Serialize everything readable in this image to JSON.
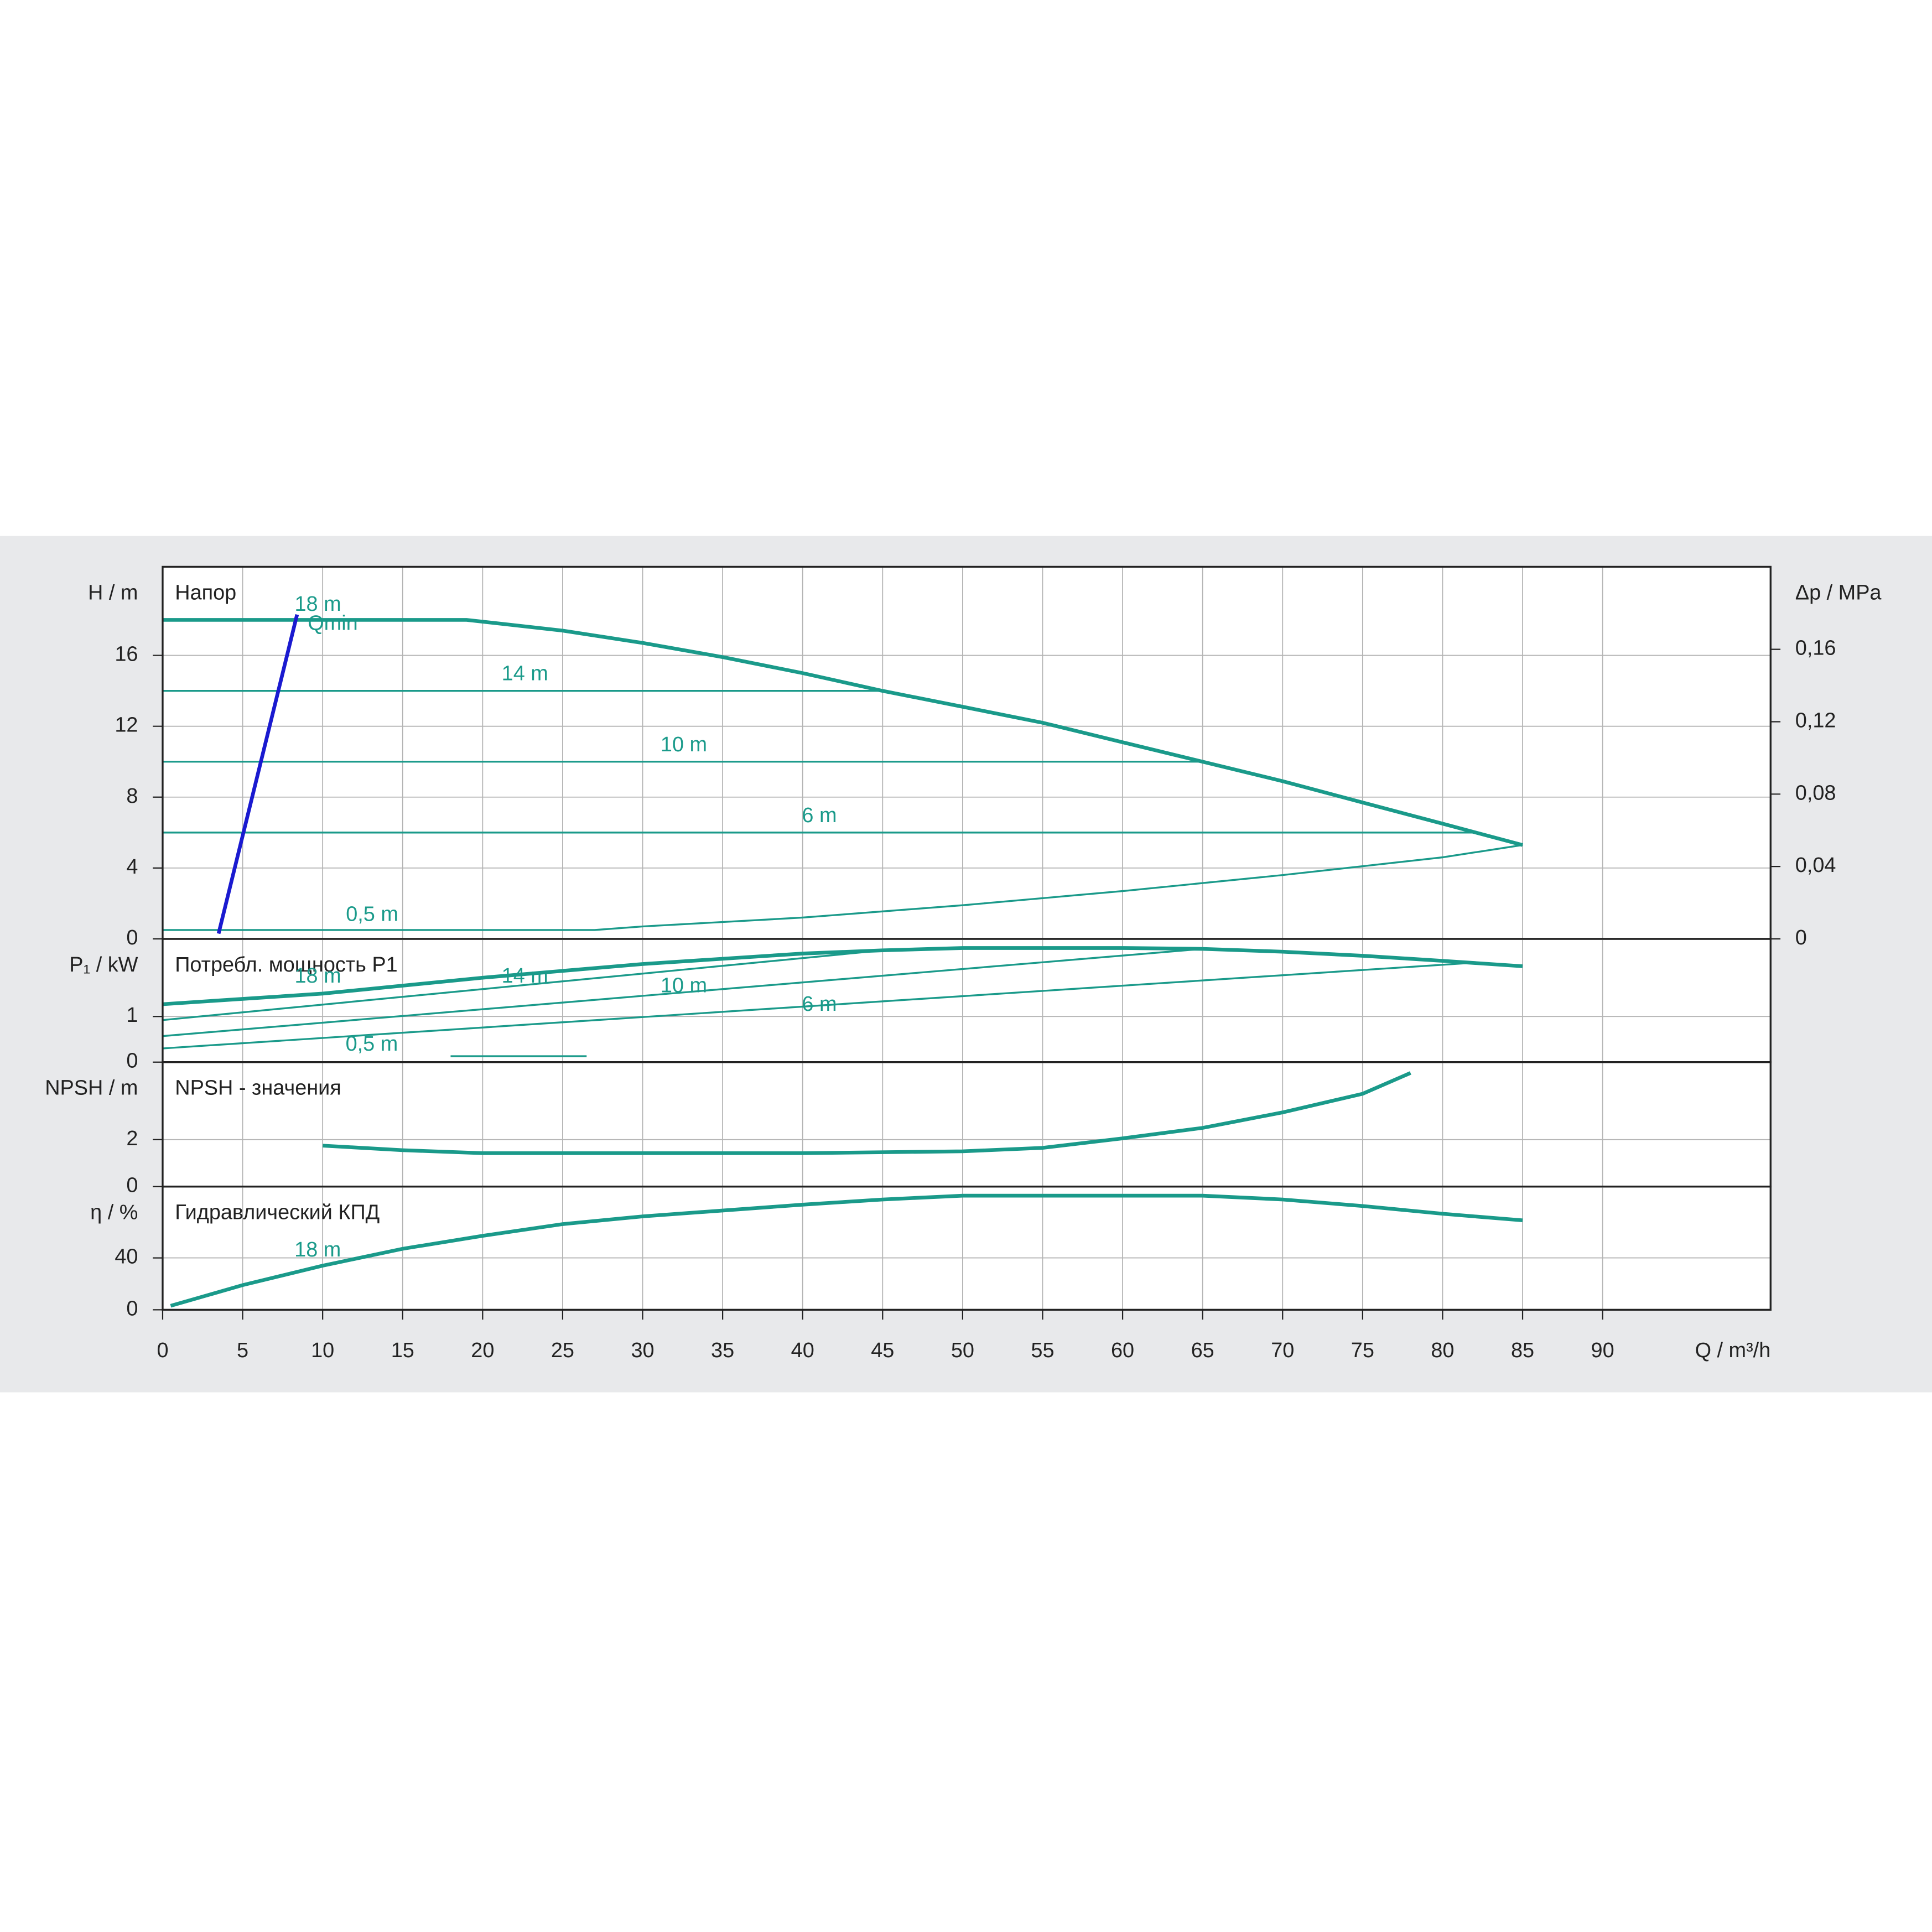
{
  "chart_data": [
    {
      "type": "line",
      "title": "Напор",
      "y_label": "H / m",
      "y2_label": "Δp / MPa",
      "ylim": [
        0,
        21
      ],
      "yticks": [
        0,
        4,
        8,
        12,
        16
      ],
      "y2lim": [
        0,
        0.2056
      ],
      "y2ticks": [
        0,
        {
          "value": 0.04,
          "label": "0,04"
        },
        {
          "value": 0.08,
          "label": "0,08"
        },
        {
          "value": 0.12,
          "label": "0,12"
        },
        {
          "value": 0.16,
          "label": "0,16"
        }
      ],
      "grid": true,
      "series": [
        {
          "name": "18 m",
          "color": "#1a9a8a",
          "x": [
            0,
            19,
            25,
            30,
            35,
            40,
            45,
            50,
            55,
            60,
            65,
            70,
            75,
            80,
            85
          ],
          "values": [
            18,
            18,
            17.4,
            16.7,
            15.9,
            15,
            14,
            13.1,
            12.2,
            11.1,
            10,
            8.9,
            7.7,
            6.5,
            5.3
          ]
        },
        {
          "name": "14 m",
          "color": "#1a9a8a",
          "x": [
            0,
            45
          ],
          "values": [
            14,
            14
          ]
        },
        {
          "name": "10 m",
          "color": "#1a9a8a",
          "x": [
            0,
            65
          ],
          "values": [
            10,
            10
          ]
        },
        {
          "name": "6 m",
          "color": "#1a9a8a",
          "x": [
            0,
            82
          ],
          "values": [
            6,
            6
          ]
        },
        {
          "name": "0,5 m",
          "color": "#1a9a8a",
          "x": [
            0,
            27,
            30,
            40,
            50,
            60,
            70,
            80,
            85
          ],
          "values": [
            0.5,
            0.5,
            0.7,
            1.2,
            1.9,
            2.7,
            3.6,
            4.6,
            5.3
          ]
        },
        {
          "name": "Qmin",
          "color": "#1a1ad0",
          "x": [
            3.5,
            8.4
          ],
          "values": [
            0.3,
            18.3
          ]
        }
      ]
    },
    {
      "type": "line",
      "title": "Потребл. мощность P1",
      "y_label": "P₁ / kW",
      "ylim": [
        0,
        2.7
      ],
      "yticks": [
        0,
        1
      ],
      "grid": true,
      "series": [
        {
          "name": "18 m",
          "color": "#1a9a8a",
          "x": [
            0,
            10,
            20,
            30,
            40,
            45,
            50,
            55,
            60,
            65,
            70,
            75,
            80,
            85
          ],
          "values": [
            1.27,
            1.5,
            1.85,
            2.15,
            2.38,
            2.45,
            2.5,
            2.5,
            2.5,
            2.48,
            2.42,
            2.33,
            2.22,
            2.1
          ]
        },
        {
          "name": "14 m",
          "color": "#1a9a8a",
          "x": [
            0,
            45
          ],
          "values": [
            0.92,
            2.45
          ]
        },
        {
          "name": "10 m",
          "color": "#1a9a8a",
          "x": [
            0,
            65
          ],
          "values": [
            0.57,
            2.48
          ]
        },
        {
          "name": "6 m",
          "color": "#1a9a8a",
          "x": [
            0,
            82
          ],
          "values": [
            0.3,
            2.18
          ]
        },
        {
          "name": "0,5 m",
          "color": "#1a9a8a",
          "x": [
            18,
            26.5
          ],
          "values": [
            0.13,
            0.13
          ]
        }
      ]
    },
    {
      "type": "line",
      "title": "NPSH - значения",
      "y_label": "NPSH / m",
      "ylim": [
        0,
        5.3
      ],
      "yticks": [
        0,
        2
      ],
      "grid": true,
      "series": [
        {
          "color": "#1a9a8a",
          "x": [
            10,
            15,
            20,
            30,
            40,
            50,
            55,
            60,
            65,
            70,
            75,
            78
          ],
          "values": [
            1.74,
            1.55,
            1.42,
            1.42,
            1.42,
            1.5,
            1.65,
            2.05,
            2.5,
            3.16,
            3.95,
            4.84
          ]
        }
      ]
    },
    {
      "type": "line",
      "title": "Гидравлический КПД",
      "y_label": "η / %",
      "ylim": [
        0,
        95
      ],
      "yticks": [
        0,
        40
      ],
      "grid": true,
      "x_label": "Q / m³/h",
      "xlim": [
        0,
        100.5
      ],
      "xticks": [
        0,
        5,
        10,
        15,
        20,
        25,
        30,
        35,
        40,
        45,
        50,
        55,
        60,
        65,
        70,
        75,
        80,
        85,
        90
      ],
      "series": [
        {
          "name": "18 m",
          "color": "#1a9a8a",
          "x": [
            0.5,
            5,
            10,
            15,
            20,
            25,
            30,
            40,
            45,
            50,
            65,
            70,
            75,
            80,
            85
          ],
          "values": [
            3,
            19,
            34,
            47,
            57,
            66,
            72,
            81,
            85,
            88,
            88,
            85,
            80,
            74,
            69
          ]
        }
      ]
    }
  ]
}
